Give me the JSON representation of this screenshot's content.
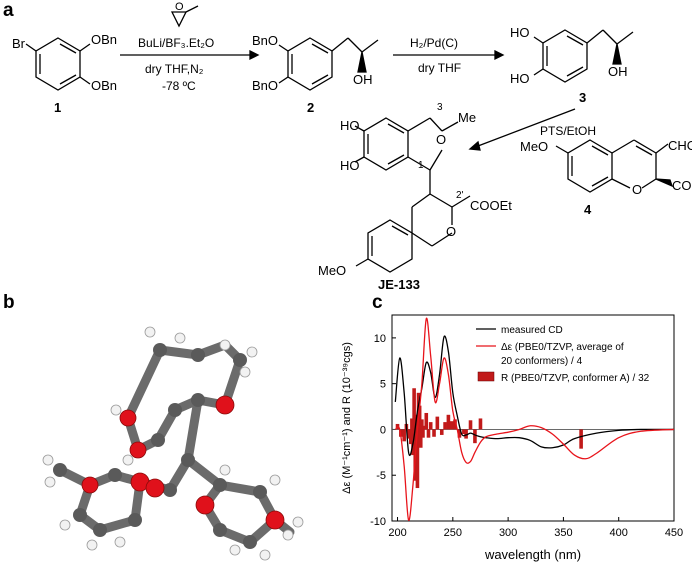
{
  "panels": {
    "a": "a",
    "b": "b",
    "c": "c"
  },
  "scheme": {
    "step1": {
      "reagent": "BuLi/BF₃.Et₂O",
      "conditions": "dry THF,N₂",
      "temperature": "-78 ºC"
    },
    "step2": {
      "reagent": "H₂/Pd(C)",
      "conditions": "dry THF"
    },
    "step3": {
      "reagent": "PTS/EtOH"
    },
    "compounds": {
      "c1": "1",
      "c2": "2",
      "c3": "3",
      "c4": "4",
      "product": "JE-133"
    },
    "groups": {
      "br": "Br",
      "obn": "OBn",
      "bno": "BnO",
      "oh": "OH",
      "ho": "HO",
      "me": "Me",
      "meo": "MeO",
      "o": "O",
      "cooet": "COOEt",
      "cho": "CHO",
      "pos1": "1",
      "pos3": "3",
      "pos2p": "2'"
    }
  },
  "colors": {
    "measured": "#000000",
    "calc": "#e8141b",
    "rot": "#c11a1a",
    "oxygen": "#e0111b",
    "carbon": "#5a5a5a",
    "hydrogen": "#f0f0f0"
  },
  "chart_data": {
    "type": "line",
    "xlabel": "wavelength (nm)",
    "ylabel": "Δε (M⁻¹cm⁻¹) and R (10⁻³⁹cgs)",
    "xlim": [
      195,
      450
    ],
    "ylim": [
      -10,
      12.5
    ],
    "xticks": [
      200,
      250,
      300,
      350,
      400,
      450
    ],
    "yticks": [
      -10,
      -5,
      0,
      5,
      10
    ],
    "legend_position": "top-right",
    "series": [
      {
        "name": "measured CD",
        "style": "line",
        "x": [
          198,
          202,
          206,
          210,
          214,
          218,
          222,
          226,
          230,
          234,
          238,
          242,
          246,
          250,
          254,
          258,
          262,
          266,
          270,
          275,
          280,
          290,
          300,
          310,
          320,
          330,
          340,
          350,
          360,
          380,
          400,
          420,
          450
        ],
        "y": [
          3,
          7.8,
          4,
          -2.5,
          -1.5,
          2,
          4.5,
          7.3,
          6.2,
          3.5,
          6,
          10.1,
          8.5,
          4,
          1.5,
          -0.5,
          -0.6,
          -0.4,
          -0.6,
          -0.8,
          -0.9,
          -1,
          -0.9,
          -0.9,
          -1.2,
          -1.9,
          -2,
          -1.7,
          -1,
          -0.4,
          -0.1,
          0,
          0
        ]
      },
      {
        "name": "Δε (PBE0/TZVP, average of 20 conformers) / 4",
        "style": "line",
        "x": [
          198,
          202,
          206,
          210,
          214,
          218,
          222,
          226,
          230,
          234,
          238,
          242,
          246,
          250,
          254,
          258,
          262,
          266,
          270,
          275,
          280,
          290,
          300,
          310,
          320,
          330,
          340,
          350,
          360,
          370,
          380,
          400,
          420,
          450
        ],
        "y": [
          0,
          0,
          -4,
          -9.9,
          -6,
          0,
          5,
          12.1,
          8,
          3,
          5,
          7.8,
          6,
          2,
          0,
          -2.5,
          -3.6,
          -3.5,
          -2.5,
          -1.4,
          -0.8,
          -0.5,
          -0.3,
          0,
          0.4,
          0.2,
          -0.5,
          -1.6,
          -2.8,
          -3.2,
          -2.6,
          -0.9,
          -0.2,
          0
        ]
      },
      {
        "name": "R (PBE0/TZVP, conformer A) / 32",
        "style": "bar",
        "x": [
          200,
          203,
          206,
          208,
          210,
          212,
          213,
          214,
          215,
          216,
          217,
          218,
          219,
          220,
          221,
          222,
          223,
          224,
          226,
          228,
          230,
          233,
          236,
          240,
          243,
          246,
          249,
          252,
          256,
          260,
          262,
          266,
          270,
          275,
          366
        ],
        "y": [
          0.6,
          -0.8,
          -1.3,
          0.6,
          -1,
          -1.6,
          1.2,
          -2.8,
          4.5,
          -5.6,
          1.6,
          -6.4,
          4,
          2.6,
          -2,
          1.1,
          -0.9,
          0.4,
          1.8,
          -0.9,
          0.8,
          -0.8,
          1.4,
          -0.6,
          0.8,
          1.6,
          0.9,
          1.1,
          -0.9,
          -0.5,
          -1,
          1,
          -1.5,
          1.2,
          -2.1
        ]
      }
    ]
  }
}
